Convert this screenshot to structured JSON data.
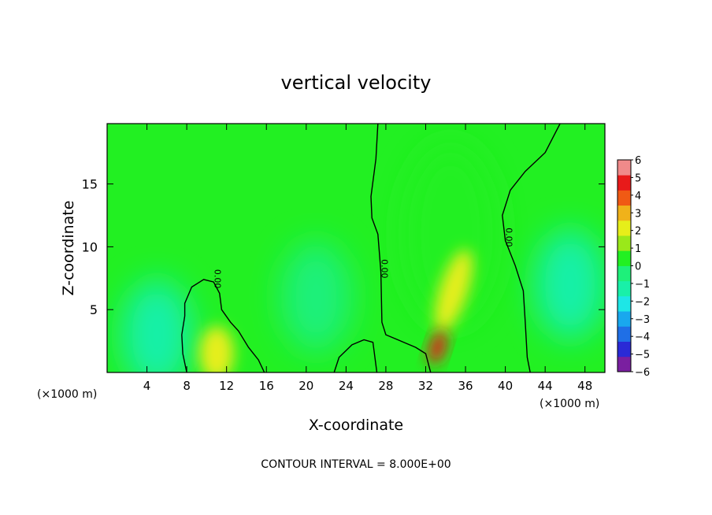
{
  "chart_data": {
    "type": "heatmap",
    "title": "vertical velocity",
    "xlabel": "X-coordinate",
    "ylabel": "Z-coordinate",
    "x_unit_left": "(×1000 m)",
    "x_unit_right": "(×1000 m)",
    "footer": "CONTOUR INTERVAL = 8.000E+00",
    "xlim": [
      0,
      50
    ],
    "ylim": [
      0,
      19.8
    ],
    "xticks": [
      4,
      8,
      12,
      16,
      20,
      24,
      28,
      32,
      36,
      40,
      44,
      48
    ],
    "xtick_labels": [
      "4",
      "8",
      "12",
      "16",
      "20",
      "24",
      "28",
      "32",
      "36",
      "40",
      "44",
      "48"
    ],
    "yticks": [
      5,
      10,
      15
    ],
    "ytick_labels": [
      "5",
      "10",
      "15"
    ],
    "colorbar": {
      "min": -6,
      "max": 6,
      "ticks": [
        6,
        5,
        4,
        3,
        2,
        1,
        0,
        -1,
        -2,
        -3,
        -4,
        -5,
        -6
      ],
      "tick_labels": [
        "6",
        "5",
        "4",
        "3",
        "2",
        "1",
        "0",
        "−1",
        "−2",
        "−3",
        "−4",
        "−5",
        "−6"
      ],
      "colors": [
        "#7a1fa0",
        "#2a2ad6",
        "#1f6fe6",
        "#19a8ee",
        "#1ee6e6",
        "#19f0a8",
        "#1ef07a",
        "#22f022",
        "#9ae81a",
        "#e6ee1a",
        "#f0b21a",
        "#f05a14",
        "#e81a1a",
        "#f08a8a"
      ]
    },
    "features": [
      {
        "kind": "updraft_max",
        "x": 33.2,
        "z": 2.0,
        "value": 5.0
      },
      {
        "kind": "updraft_core",
        "x": 34.8,
        "z": 6.5,
        "value": 2.5
      },
      {
        "kind": "updraft_broad",
        "x": 34.5,
        "z": 11.0,
        "value": 0.7
      },
      {
        "kind": "weak_updraft",
        "x": 11.0,
        "z": 1.5,
        "value": 1.8
      },
      {
        "kind": "downdraft",
        "x": 46.5,
        "z": 7.0,
        "value": -1.6
      },
      {
        "kind": "downdraft",
        "x": 5.0,
        "z": 3.0,
        "value": -1.2
      },
      {
        "kind": "downdraft",
        "x": 21.0,
        "z": 6.0,
        "value": -0.6
      }
    ],
    "contours": [
      {
        "level": 0.0,
        "label": "0.00",
        "points": [
          [
            27.2,
            19.8
          ],
          [
            27.0,
            17.0
          ],
          [
            26.5,
            14.0
          ],
          [
            26.6,
            12.3
          ],
          [
            27.2,
            11.0
          ],
          [
            27.5,
            8.0
          ],
          [
            27.6,
            4.0
          ],
          [
            28.0,
            3.0
          ],
          [
            31.0,
            2.0
          ],
          [
            32.0,
            1.5
          ],
          [
            32.5,
            0.0
          ]
        ]
      },
      {
        "level": 0.0,
        "label": "0.00",
        "points": [
          [
            45.5,
            19.8
          ],
          [
            44.0,
            17.5
          ],
          [
            42.0,
            16.0
          ],
          [
            40.5,
            14.5
          ],
          [
            39.7,
            12.5
          ],
          [
            40.0,
            10.5
          ],
          [
            41.0,
            8.5
          ],
          [
            41.8,
            6.5
          ],
          [
            42.0,
            4.0
          ],
          [
            42.2,
            1.2
          ],
          [
            42.5,
            0.0
          ]
        ]
      },
      {
        "level": 0.0,
        "label": "0.00",
        "points": [
          [
            8.0,
            0.0
          ],
          [
            7.6,
            1.5
          ],
          [
            7.5,
            3.0
          ],
          [
            7.8,
            4.5
          ],
          [
            7.8,
            5.5
          ],
          [
            8.5,
            6.8
          ],
          [
            9.7,
            7.4
          ],
          [
            10.7,
            7.2
          ],
          [
            11.3,
            6.3
          ],
          [
            11.5,
            5.0
          ],
          [
            12.4,
            4.0
          ],
          [
            13.2,
            3.3
          ],
          [
            14.2,
            2.0
          ],
          [
            15.2,
            1.0
          ],
          [
            15.8,
            0.0
          ]
        ]
      },
      {
        "level": 0.0,
        "label": "",
        "points": [
          [
            22.8,
            0.0
          ],
          [
            23.3,
            1.2
          ],
          [
            24.6,
            2.2
          ],
          [
            25.8,
            2.6
          ],
          [
            26.7,
            2.4
          ],
          [
            26.9,
            1.2
          ],
          [
            27.1,
            0.0
          ]
        ]
      }
    ]
  }
}
